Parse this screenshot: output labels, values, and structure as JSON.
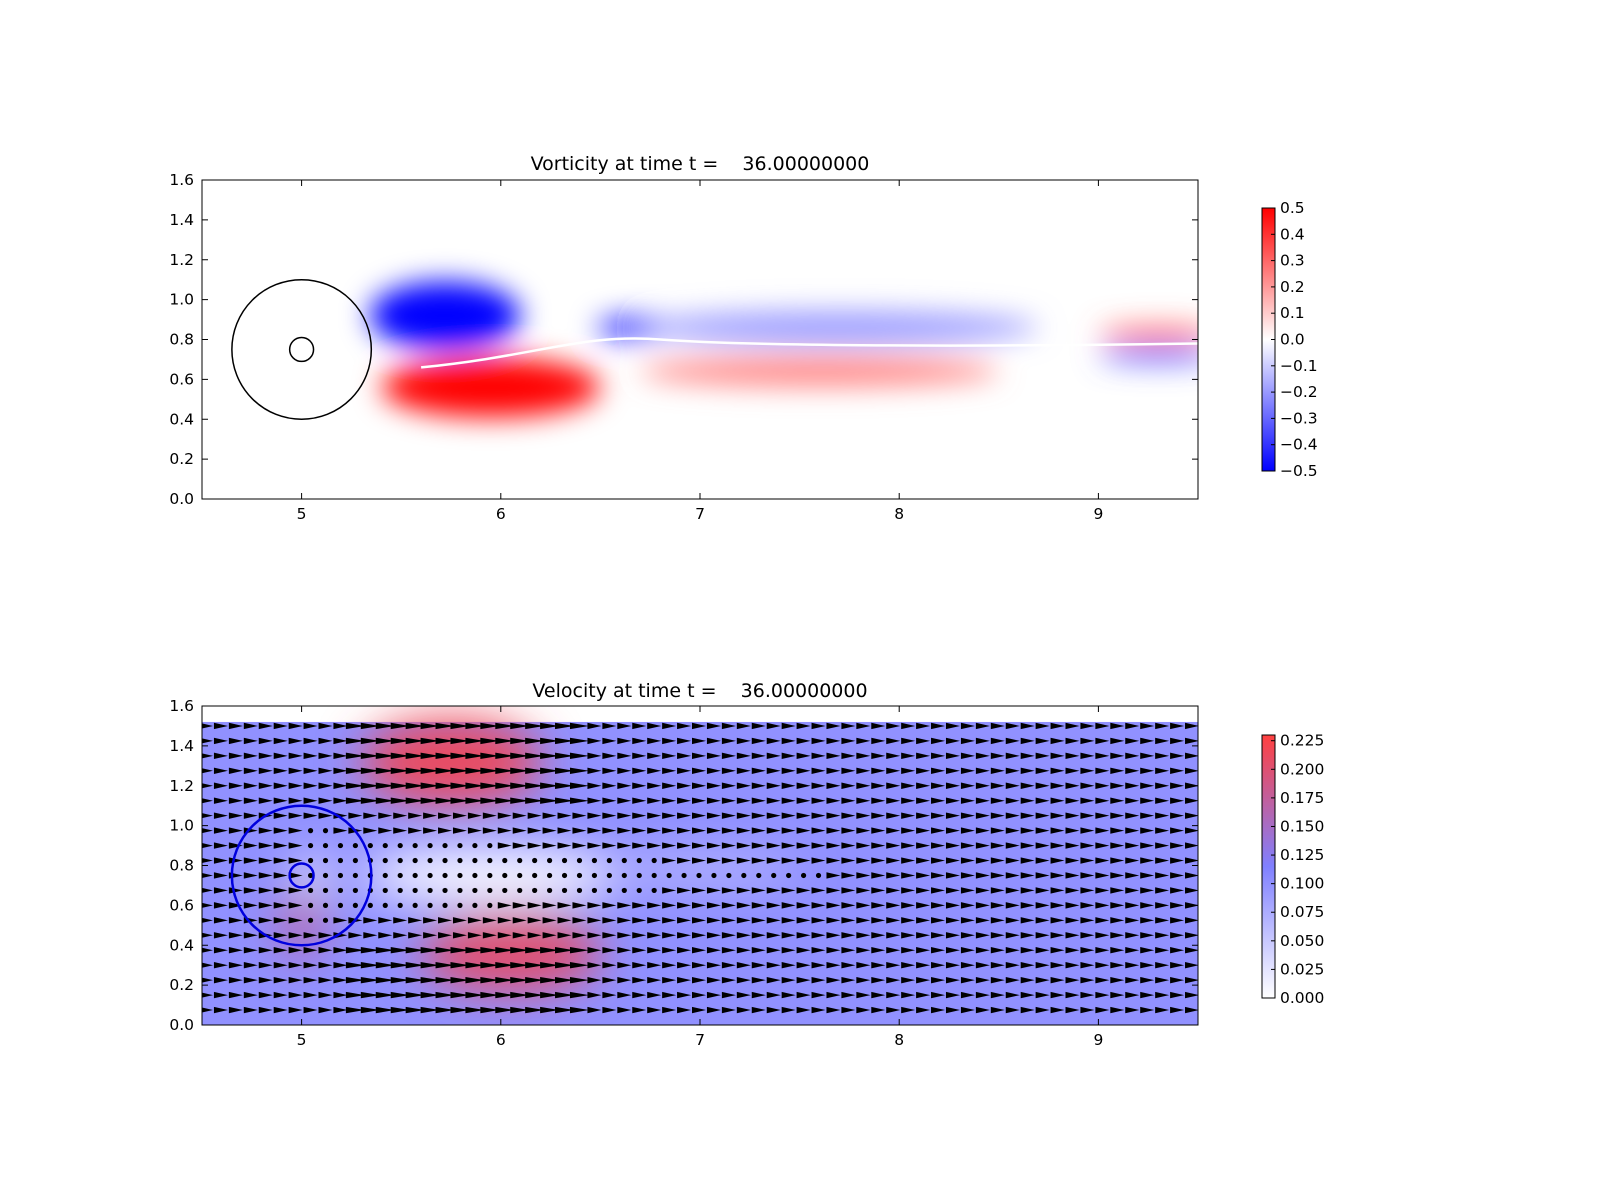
{
  "chart_data": [
    {
      "type": "heatmap",
      "title": "Vorticity at time t =    36.00000000",
      "xlabel": "",
      "ylabel": "",
      "xlim": [
        4.5,
        9.5
      ],
      "ylim": [
        0.0,
        1.6
      ],
      "xticks": [
        "5",
        "6",
        "7",
        "8",
        "9"
      ],
      "yticks": [
        "0.0",
        "0.2",
        "0.4",
        "0.6",
        "0.8",
        "1.0",
        "1.2",
        "1.4",
        "1.6"
      ],
      "colorbar": {
        "min": -0.5,
        "max": 0.5,
        "colors": [
          "#0000ff",
          "#ffffff",
          "#ff0000"
        ],
        "ticks": [
          "−0.5",
          "−0.4",
          "−0.3",
          "−0.2",
          "−0.1",
          "0.0",
          "0.1",
          "0.2",
          "0.3",
          "0.4",
          "0.5"
        ]
      },
      "overlay_circles": [
        {
          "center": [
            5.0,
            0.75
          ],
          "radius": 0.35,
          "color": "#000000"
        },
        {
          "center": [
            5.0,
            0.75
          ],
          "radius": 0.06,
          "color": "#000000"
        }
      ],
      "features": [
        {
          "kind": "negative-vortex",
          "x": 5.72,
          "y": 0.92,
          "rx": 0.38,
          "ry": 0.17,
          "value": -0.5
        },
        {
          "kind": "negative-vortex",
          "x": 6.7,
          "y": 0.86,
          "rx": 0.22,
          "ry": 0.05,
          "value": -0.5
        },
        {
          "kind": "positive-vortex",
          "x": 5.95,
          "y": 0.56,
          "rx": 0.55,
          "ry": 0.15,
          "value": 0.5
        },
        {
          "kind": "positive-wake",
          "x": 7.6,
          "y": 0.64,
          "rx": 0.9,
          "ry": 0.07,
          "value": 0.25
        },
        {
          "kind": "negative-wake",
          "x": 7.7,
          "y": 0.86,
          "rx": 1.0,
          "ry": 0.08,
          "value": -0.2
        },
        {
          "kind": "positive-tail",
          "x": 9.3,
          "y": 0.83,
          "rx": 0.3,
          "ry": 0.04,
          "value": 0.3
        },
        {
          "kind": "negative-tail",
          "x": 9.3,
          "y": 0.72,
          "rx": 0.3,
          "ry": 0.04,
          "value": -0.3
        }
      ]
    },
    {
      "type": "heatmap",
      "title": "Velocity at time t =    36.00000000",
      "xlabel": "",
      "ylabel": "",
      "xlim": [
        4.5,
        9.5
      ],
      "ylim": [
        0.0,
        1.6
      ],
      "field_ylim": [
        0.0,
        1.52
      ],
      "xticks": [
        "5",
        "6",
        "7",
        "8",
        "9"
      ],
      "yticks": [
        "0.0",
        "0.2",
        "0.4",
        "0.6",
        "0.8",
        "1.0",
        "1.2",
        "1.4",
        "1.6"
      ],
      "background_value": 0.1,
      "colorbar": {
        "min": 0.0,
        "max": 0.23,
        "colors": [
          "#ffffff",
          "#8080ff",
          "#ff4040"
        ],
        "ticks": [
          "0.000",
          "0.025",
          "0.050",
          "0.075",
          "0.100",
          "0.125",
          "0.150",
          "0.175",
          "0.200",
          "0.225"
        ]
      },
      "overlay_circles": [
        {
          "center": [
            5.0,
            0.75
          ],
          "radius": 0.35,
          "color": "#0000dd"
        },
        {
          "center": [
            5.0,
            0.75
          ],
          "radius": 0.06,
          "color": "#0000dd"
        }
      ],
      "features": [
        {
          "kind": "fast-band",
          "x": 5.75,
          "y": 1.32,
          "rx": 0.45,
          "ry": 0.22,
          "value": 0.21
        },
        {
          "kind": "fast-band",
          "x": 6.05,
          "y": 0.36,
          "rx": 0.45,
          "ry": 0.2,
          "value": 0.2
        },
        {
          "kind": "fast-patch",
          "x": 5.0,
          "y": 0.5,
          "rx": 0.12,
          "ry": 0.18,
          "value": 0.16
        },
        {
          "kind": "slow-wake",
          "x": 5.95,
          "y": 0.75,
          "rx": 0.65,
          "ry": 0.13,
          "value": 0.0
        },
        {
          "kind": "slow-wake",
          "x": 7.0,
          "y": 0.78,
          "rx": 0.5,
          "ry": 0.05,
          "value": 0.05
        },
        {
          "kind": "slow-core",
          "x": 5.06,
          "y": 0.75,
          "rx": 0.08,
          "ry": 0.09,
          "value": 0.0
        }
      ],
      "quiver": {
        "x_start": 4.52,
        "x_step": 0.075,
        "y_start": 0.075,
        "y_step": 0.075,
        "y_max": 1.5
      }
    }
  ]
}
